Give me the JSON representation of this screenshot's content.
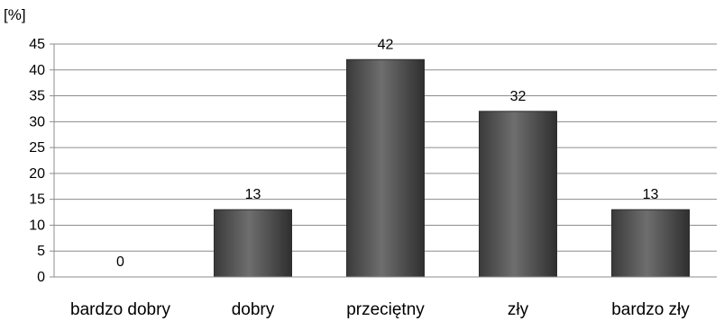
{
  "chart_data": {
    "type": "bar",
    "ylabel": "[%]",
    "categories": [
      "bardzo dobry",
      "dobry",
      "przeciętny",
      "zły",
      "bardzo zły"
    ],
    "values": [
      0,
      13,
      42,
      32,
      13
    ],
    "data_labels": [
      "0",
      "13",
      "42",
      "32",
      "13"
    ],
    "ylim": [
      0,
      45
    ],
    "yticks": [
      "0",
      "5",
      "10",
      "15",
      "20",
      "25",
      "30",
      "35",
      "40",
      "45"
    ],
    "grid": true,
    "legend": "none",
    "colors": {
      "bar": "#5a5a5a",
      "bar_edge": "#2e2e2e",
      "grid": "#8c8c8c",
      "axis": "#8c8c8c"
    }
  }
}
